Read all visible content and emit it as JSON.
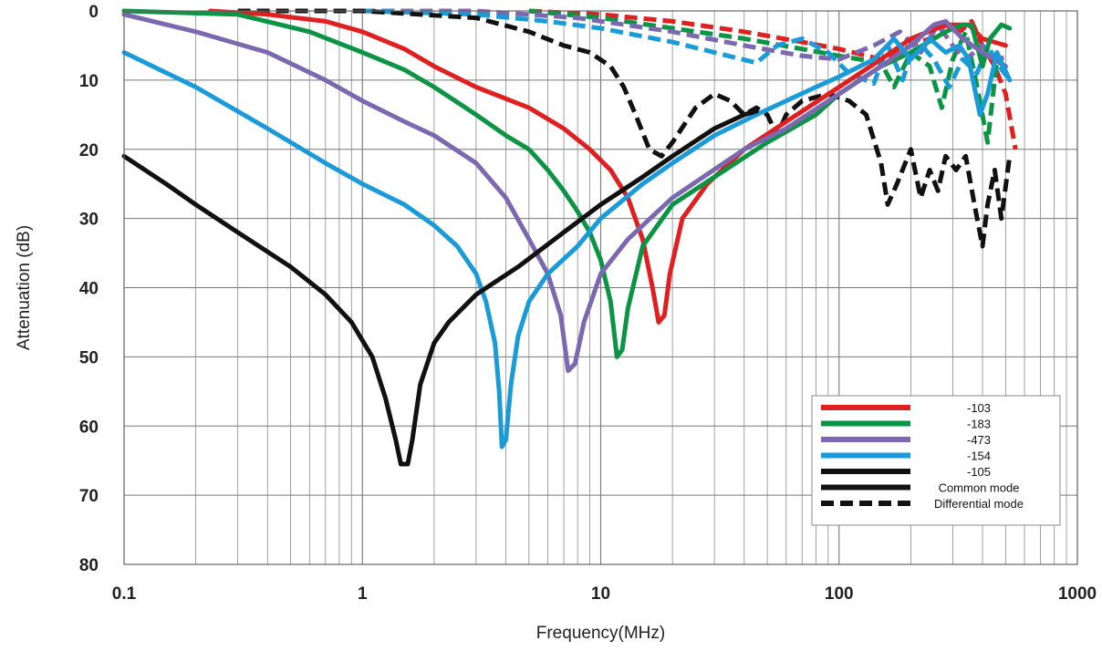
{
  "chart_data": {
    "type": "line",
    "xlabel": "Frequency(MHz)",
    "ylabel": "Attenuation (dB)",
    "x_scale": "log",
    "xlim": [
      0.1,
      1000
    ],
    "ylim": [
      0,
      80
    ],
    "y_inverted": true,
    "grid": true,
    "legend_position": "bottom-right",
    "x_ticks": [
      {
        "value": 0.1,
        "label": "0.1"
      },
      {
        "value": 1,
        "label": "1"
      },
      {
        "value": 10,
        "label": "10"
      },
      {
        "value": 100,
        "label": "100"
      },
      {
        "value": 1000,
        "label": "1000"
      }
    ],
    "y_ticks": [
      {
        "value": 0,
        "label": "0"
      },
      {
        "value": 10,
        "label": "10"
      },
      {
        "value": 20,
        "label": "20"
      },
      {
        "value": 30,
        "label": "30"
      },
      {
        "value": 40,
        "label": "40"
      },
      {
        "value": 50,
        "label": "50"
      },
      {
        "value": 60,
        "label": "60"
      },
      {
        "value": 70,
        "label": "70"
      },
      {
        "value": 80,
        "label": "80"
      }
    ],
    "legend": {
      "entries": [
        {
          "label": "-103",
          "color": "#e02020",
          "style": "solid"
        },
        {
          "label": "-183",
          "color": "#0b9444",
          "style": "solid"
        },
        {
          "label": "-473",
          "color": "#7b68b0",
          "style": "solid"
        },
        {
          "label": "-154",
          "color": "#1a9bd9",
          "style": "solid"
        },
        {
          "label": "-105",
          "color": "#111111",
          "style": "solid"
        },
        {
          "label": "Common mode",
          "color": "#111111",
          "style": "solid"
        },
        {
          "label": "Differential mode",
          "color": "#111111",
          "style": "dashed"
        }
      ]
    },
    "series": [
      {
        "name": "-103",
        "mode": "common",
        "color": "#e02020",
        "dashed": false,
        "points": [
          [
            0.23,
            0
          ],
          [
            0.4,
            0.5
          ],
          [
            0.7,
            1.5
          ],
          [
            1,
            3
          ],
          [
            1.5,
            5.5
          ],
          [
            2,
            8
          ],
          [
            3,
            11
          ],
          [
            5,
            14
          ],
          [
            7,
            17
          ],
          [
            9,
            20
          ],
          [
            11,
            23
          ],
          [
            13,
            27
          ],
          [
            15,
            33
          ],
          [
            16.5,
            40
          ],
          [
            17.5,
            45
          ],
          [
            18.5,
            44
          ],
          [
            19.5,
            38
          ],
          [
            22,
            30
          ],
          [
            28,
            25
          ],
          [
            40,
            20
          ],
          [
            60,
            16
          ],
          [
            100,
            11
          ],
          [
            150,
            7
          ],
          [
            200,
            4
          ],
          [
            280,
            2
          ],
          [
            350,
            2
          ],
          [
            400,
            4
          ],
          [
            500,
            5
          ]
        ]
      },
      {
        "name": "-183",
        "mode": "common",
        "color": "#0b9444",
        "dashed": false,
        "points": [
          [
            0.1,
            0
          ],
          [
            0.3,
            0.5
          ],
          [
            0.6,
            3
          ],
          [
            1,
            6
          ],
          [
            1.5,
            8.5
          ],
          [
            2,
            11
          ],
          [
            3,
            15
          ],
          [
            4,
            18
          ],
          [
            5,
            20
          ],
          [
            6,
            23
          ],
          [
            7,
            26
          ],
          [
            8,
            29
          ],
          [
            9,
            32
          ],
          [
            10,
            36
          ],
          [
            11,
            42
          ],
          [
            11.7,
            50
          ],
          [
            12.3,
            49
          ],
          [
            13,
            43
          ],
          [
            15,
            34
          ],
          [
            20,
            28
          ],
          [
            30,
            24
          ],
          [
            50,
            19
          ],
          [
            80,
            15
          ],
          [
            100,
            12
          ],
          [
            150,
            8
          ],
          [
            200,
            6
          ],
          [
            280,
            3
          ],
          [
            330,
            2
          ],
          [
            360,
            2
          ],
          [
            400,
            8
          ],
          [
            430,
            4
          ],
          [
            480,
            2
          ],
          [
            520,
            2.5
          ]
        ]
      },
      {
        "name": "-473",
        "mode": "common",
        "color": "#7b68b0",
        "dashed": false,
        "points": [
          [
            0.1,
            0.5
          ],
          [
            0.2,
            3
          ],
          [
            0.4,
            6
          ],
          [
            0.7,
            10
          ],
          [
            1,
            13
          ],
          [
            1.5,
            16
          ],
          [
            2,
            18
          ],
          [
            3,
            22
          ],
          [
            4,
            27
          ],
          [
            5,
            33
          ],
          [
            6,
            38
          ],
          [
            6.8,
            44
          ],
          [
            7.3,
            52
          ],
          [
            7.8,
            51
          ],
          [
            8.5,
            45
          ],
          [
            10,
            38
          ],
          [
            13,
            33
          ],
          [
            20,
            27
          ],
          [
            40,
            20
          ],
          [
            60,
            17
          ],
          [
            100,
            12
          ],
          [
            150,
            8
          ],
          [
            200,
            5
          ],
          [
            250,
            2
          ],
          [
            280,
            1.5
          ],
          [
            330,
            4
          ],
          [
            400,
            6
          ],
          [
            500,
            8
          ]
        ]
      },
      {
        "name": "-154",
        "mode": "common",
        "color": "#1a9bd9",
        "dashed": false,
        "points": [
          [
            0.1,
            6
          ],
          [
            0.2,
            11
          ],
          [
            0.4,
            17
          ],
          [
            0.7,
            22
          ],
          [
            1,
            25
          ],
          [
            1.5,
            28
          ],
          [
            2,
            31
          ],
          [
            2.5,
            34
          ],
          [
            3,
            38
          ],
          [
            3.3,
            42
          ],
          [
            3.6,
            48
          ],
          [
            3.75,
            55
          ],
          [
            3.85,
            63
          ],
          [
            4,
            62
          ],
          [
            4.2,
            54
          ],
          [
            4.5,
            47
          ],
          [
            5,
            42
          ],
          [
            6,
            38
          ],
          [
            8,
            34
          ],
          [
            10,
            30
          ],
          [
            15,
            25
          ],
          [
            20,
            22
          ],
          [
            30,
            18
          ],
          [
            45,
            15
          ],
          [
            60,
            13
          ],
          [
            80,
            11
          ],
          [
            100,
            9.5
          ],
          [
            140,
            7
          ],
          [
            170,
            4
          ],
          [
            200,
            7
          ],
          [
            240,
            4
          ],
          [
            280,
            6
          ],
          [
            320,
            5
          ],
          [
            350,
            7
          ],
          [
            390,
            15
          ],
          [
            420,
            12
          ],
          [
            460,
            6
          ],
          [
            520,
            10
          ]
        ]
      },
      {
        "name": "-105",
        "mode": "common",
        "color": "#111111",
        "dashed": false,
        "points": [
          [
            0.1,
            21
          ],
          [
            0.15,
            25
          ],
          [
            0.2,
            28
          ],
          [
            0.3,
            32
          ],
          [
            0.5,
            37
          ],
          [
            0.7,
            41
          ],
          [
            0.9,
            45
          ],
          [
            1.1,
            50
          ],
          [
            1.25,
            56
          ],
          [
            1.38,
            62
          ],
          [
            1.45,
            65.5
          ],
          [
            1.55,
            65.5
          ],
          [
            1.62,
            62
          ],
          [
            1.75,
            54
          ],
          [
            2,
            48
          ],
          [
            2.3,
            45
          ],
          [
            3,
            41
          ],
          [
            4.5,
            37
          ],
          [
            7,
            32
          ],
          [
            10,
            28
          ],
          [
            15,
            24
          ],
          [
            20,
            21
          ],
          [
            30,
            17
          ],
          [
            40,
            15
          ],
          [
            45,
            14.5
          ]
        ]
      },
      {
        "name": "-103",
        "mode": "differential",
        "color": "#e02020",
        "dashed": true,
        "points": [
          [
            5,
            0
          ],
          [
            10,
            0.5
          ],
          [
            20,
            1.5
          ],
          [
            40,
            3
          ],
          [
            70,
            4.5
          ],
          [
            100,
            5.5
          ],
          [
            150,
            7
          ],
          [
            200,
            5
          ],
          [
            240,
            4
          ],
          [
            280,
            2
          ],
          [
            320,
            3
          ],
          [
            360,
            1.5
          ],
          [
            400,
            5
          ],
          [
            450,
            8
          ],
          [
            500,
            12
          ],
          [
            550,
            20
          ]
        ]
      },
      {
        "name": "-183",
        "mode": "differential",
        "color": "#0b9444",
        "dashed": true,
        "points": [
          [
            5,
            0
          ],
          [
            10,
            1
          ],
          [
            20,
            2.5
          ],
          [
            40,
            4
          ],
          [
            70,
            5.5
          ],
          [
            100,
            6.5
          ],
          [
            150,
            7.5
          ],
          [
            170,
            11
          ],
          [
            200,
            6
          ],
          [
            240,
            8
          ],
          [
            270,
            14
          ],
          [
            300,
            7
          ],
          [
            340,
            3
          ],
          [
            380,
            11
          ],
          [
            420,
            19
          ],
          [
            460,
            7
          ],
          [
            520,
            9
          ]
        ]
      },
      {
        "name": "-473",
        "mode": "differential",
        "color": "#7b68b0",
        "dashed": true,
        "points": [
          [
            1,
            0
          ],
          [
            3,
            0
          ],
          [
            8,
            1
          ],
          [
            20,
            3
          ],
          [
            40,
            5
          ],
          [
            70,
            6.5
          ],
          [
            100,
            7
          ],
          [
            140,
            5
          ],
          [
            180,
            3
          ],
          [
            220,
            6
          ],
          [
            260,
            2
          ],
          [
            300,
            5
          ],
          [
            340,
            7
          ],
          [
            400,
            5
          ],
          [
            460,
            7
          ],
          [
            520,
            6.5
          ]
        ]
      },
      {
        "name": "-154",
        "mode": "differential",
        "color": "#1a9bd9",
        "dashed": true,
        "points": [
          [
            1,
            0
          ],
          [
            3,
            0.5
          ],
          [
            6,
            1.5
          ],
          [
            10,
            2.5
          ],
          [
            20,
            4.5
          ],
          [
            30,
            6
          ],
          [
            45,
            7.5
          ],
          [
            55,
            5
          ],
          [
            70,
            4
          ],
          [
            90,
            6
          ],
          [
            110,
            9
          ],
          [
            140,
            10.5
          ],
          [
            160,
            5
          ],
          [
            185,
            10
          ],
          [
            210,
            4
          ],
          [
            250,
            7
          ],
          [
            290,
            11
          ],
          [
            330,
            7
          ],
          [
            380,
            9
          ],
          [
            420,
            5
          ],
          [
            470,
            8
          ],
          [
            520,
            10
          ]
        ]
      },
      {
        "name": "-105",
        "mode": "differential",
        "color": "#111111",
        "dashed": true,
        "points": [
          [
            0.3,
            0
          ],
          [
            1,
            0
          ],
          [
            3,
            1
          ],
          [
            5,
            3
          ],
          [
            7,
            5
          ],
          [
            9,
            6
          ],
          [
            11,
            8
          ],
          [
            12.5,
            11
          ],
          [
            14,
            15
          ],
          [
            16,
            20
          ],
          [
            18,
            21
          ],
          [
            20,
            19
          ],
          [
            25,
            14
          ],
          [
            30,
            12
          ],
          [
            35,
            13
          ],
          [
            40,
            15
          ],
          [
            45,
            14
          ],
          [
            50,
            15
          ],
          [
            55,
            18
          ],
          [
            60,
            15
          ],
          [
            70,
            13
          ],
          [
            90,
            12
          ],
          [
            110,
            13
          ],
          [
            130,
            15
          ],
          [
            150,
            22
          ],
          [
            160,
            28
          ],
          [
            175,
            25
          ],
          [
            200,
            20
          ],
          [
            220,
            27
          ],
          [
            240,
            23
          ],
          [
            260,
            26
          ],
          [
            280,
            21
          ],
          [
            310,
            23
          ],
          [
            340,
            21
          ],
          [
            370,
            28
          ],
          [
            400,
            34
          ],
          [
            420,
            28
          ],
          [
            450,
            23
          ],
          [
            480,
            30
          ],
          [
            520,
            21
          ]
        ]
      }
    ]
  }
}
